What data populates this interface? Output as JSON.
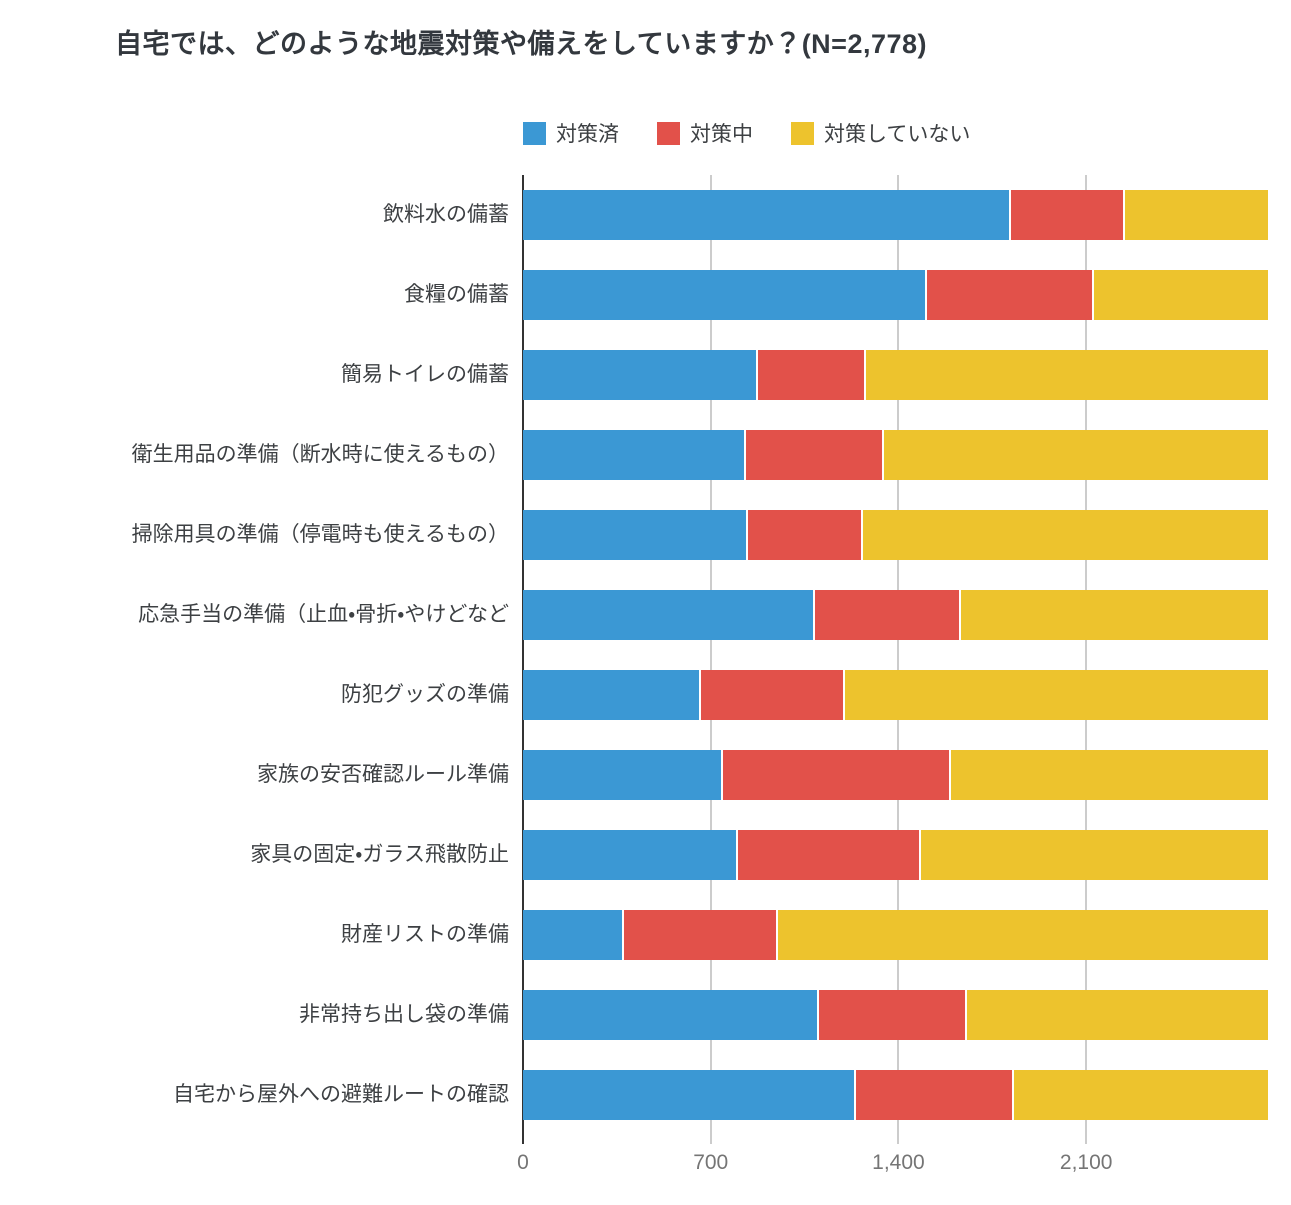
{
  "title": "自宅では、どのような地震対策や備えをしていますか？(N=2,778)",
  "colors": {
    "series_done": "#3b98d4",
    "series_in_progress": "#e2514a",
    "series_not_done": "#edc32d",
    "gridline": "#cccccc",
    "axis": "#333333",
    "title_text": "#33383e",
    "label_text": "#3d4043",
    "tick_text": "#757575"
  },
  "chart_data": {
    "type": "bar",
    "orientation": "horizontal",
    "stacked": true,
    "title": "自宅では、どのような地震対策や備えをしていますか？(N=2,778)",
    "sample_size": 2778,
    "legend_position": "top",
    "grid": true,
    "xlim": [
      0,
      2778
    ],
    "x_ticks": [
      0,
      700,
      1400,
      2100
    ],
    "x_tick_labels": [
      "0",
      "700",
      "1,400",
      "2,100"
    ],
    "categories": [
      "飲料水の備蓄",
      "食糧の備蓄",
      "簡易トイレの備蓄",
      "衛生用品の準備（断水時に使えるもの）",
      "掃除用具の準備（停電時も使えるもの）",
      "応急手当の準備（止血・骨折・やけどなど",
      "防犯グッズの準備",
      "家族の安否確認ルール準備",
      "家具の固定・ガラス飛散防止",
      "財産リストの準備",
      "非常持ち出し袋の準備",
      "自宅から屋外への避難ルートの確認"
    ],
    "series": [
      {
        "name": "対策済",
        "color": "#3b98d4",
        "values": [
          1813,
          1500,
          870,
          823,
          832,
          1082,
          656,
          740,
          795,
          371,
          1095,
          1235
        ]
      },
      {
        "name": "対策中",
        "color": "#e2514a",
        "values": [
          423,
          620,
          401,
          517,
          430,
          543,
          536,
          850,
          680,
          572,
          555,
          590
        ]
      },
      {
        "name": "対策していない",
        "color": "#edc32d",
        "values": [
          542,
          658,
          1507,
          1438,
          1516,
          1153,
          1586,
          1188,
          1303,
          1835,
          1128,
          953
        ]
      }
    ]
  }
}
